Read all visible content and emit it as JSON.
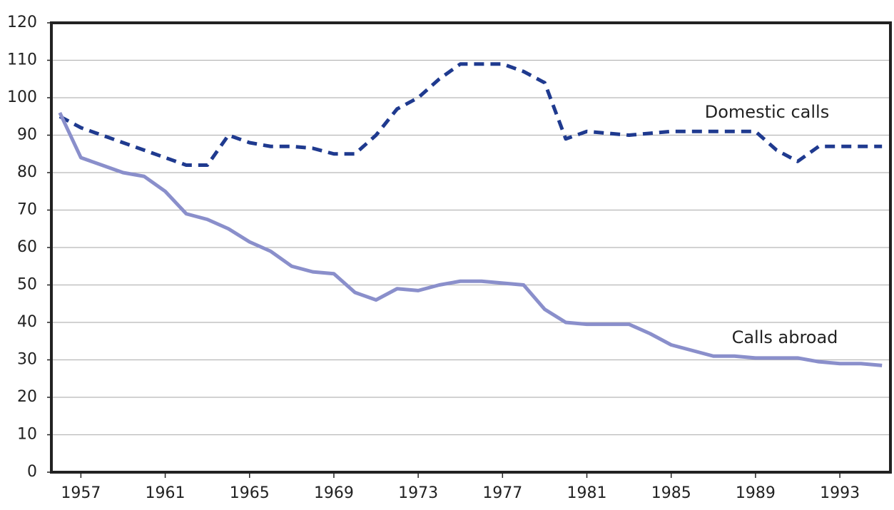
{
  "chart_data": {
    "type": "line",
    "x": [
      1956,
      1957,
      1958,
      1959,
      1960,
      1961,
      1962,
      1963,
      1964,
      1965,
      1966,
      1967,
      1968,
      1969,
      1970,
      1971,
      1972,
      1973,
      1974,
      1975,
      1976,
      1977,
      1978,
      1979,
      1980,
      1981,
      1982,
      1983,
      1984,
      1985,
      1986,
      1987,
      1988,
      1989,
      1990,
      1991,
      1992,
      1993,
      1994,
      1995
    ],
    "series": [
      {
        "name": "Domestic calls",
        "color": "#1f3a8f",
        "dash": true,
        "values": [
          95,
          92,
          90,
          88,
          86,
          84,
          82,
          82,
          90,
          88,
          87,
          87,
          86.5,
          85,
          85,
          90,
          97,
          100,
          105,
          109,
          109,
          109,
          107,
          104,
          89,
          91,
          90.5,
          90,
          90.5,
          91,
          91,
          91,
          91,
          91,
          86,
          83,
          87,
          87,
          87,
          87
        ]
      },
      {
        "name": "Calls abroad",
        "color": "#8a8fcb",
        "dash": false,
        "values": [
          96,
          84,
          82,
          80,
          79,
          75,
          69,
          67.5,
          65,
          61.5,
          59,
          55,
          53.5,
          53,
          48,
          46,
          49,
          48.5,
          50,
          51,
          51,
          50.5,
          50,
          43.5,
          40,
          39.5,
          39.5,
          39.5,
          37,
          34,
          32.5,
          31,
          31,
          30.5,
          30.5,
          30.5,
          29.5,
          29,
          29,
          28.5
        ]
      }
    ],
    "xlim": [
      1955.6,
      1995.4
    ],
    "xticks": [
      1957,
      1961,
      1965,
      1969,
      1973,
      1977,
      1981,
      1985,
      1989,
      1993
    ],
    "ylim": [
      0,
      120
    ],
    "yticks": [
      0,
      10,
      20,
      30,
      40,
      50,
      60,
      70,
      80,
      90,
      100,
      110,
      120
    ],
    "grid": true
  }
}
